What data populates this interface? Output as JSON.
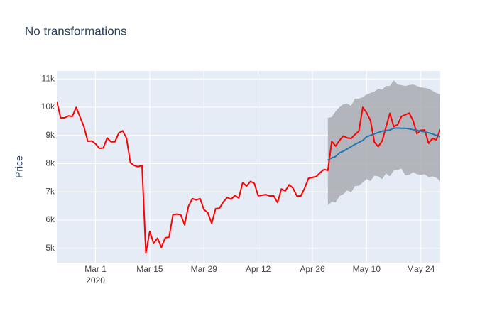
{
  "chart_data": {
    "type": "line",
    "title": "No transformations",
    "y_label": "Price",
    "x": [
      "2020-02-20",
      "2020-02-21",
      "2020-02-22",
      "2020-02-23",
      "2020-02-24",
      "2020-02-25",
      "2020-02-26",
      "2020-02-27",
      "2020-02-28",
      "2020-02-29",
      "2020-03-01",
      "2020-03-02",
      "2020-03-03",
      "2020-03-04",
      "2020-03-05",
      "2020-03-06",
      "2020-03-07",
      "2020-03-08",
      "2020-03-09",
      "2020-03-10",
      "2020-03-11",
      "2020-03-12",
      "2020-03-13",
      "2020-03-14",
      "2020-03-15",
      "2020-03-16",
      "2020-03-17",
      "2020-03-18",
      "2020-03-19",
      "2020-03-20",
      "2020-03-21",
      "2020-03-22",
      "2020-03-23",
      "2020-03-24",
      "2020-03-25",
      "2020-03-26",
      "2020-03-27",
      "2020-03-28",
      "2020-03-29",
      "2020-03-30",
      "2020-03-31",
      "2020-04-01",
      "2020-04-02",
      "2020-04-03",
      "2020-04-04",
      "2020-04-05",
      "2020-04-06",
      "2020-04-07",
      "2020-04-08",
      "2020-04-09",
      "2020-04-10",
      "2020-04-11",
      "2020-04-12",
      "2020-04-13",
      "2020-04-14",
      "2020-04-15",
      "2020-04-16",
      "2020-04-17",
      "2020-04-18",
      "2020-04-19",
      "2020-04-20",
      "2020-04-21",
      "2020-04-22",
      "2020-04-23",
      "2020-04-24",
      "2020-04-25",
      "2020-04-26",
      "2020-04-27",
      "2020-04-28",
      "2020-04-29",
      "2020-04-30",
      "2020-05-01",
      "2020-05-02",
      "2020-05-03",
      "2020-05-04",
      "2020-05-05",
      "2020-05-06",
      "2020-05-07",
      "2020-05-08",
      "2020-05-09",
      "2020-05-10",
      "2020-05-11",
      "2020-05-12",
      "2020-05-13",
      "2020-05-14",
      "2020-05-15",
      "2020-05-16",
      "2020-05-17",
      "2020-05-18",
      "2020-05-19",
      "2020-05-20",
      "2020-05-21",
      "2020-05-22",
      "2020-05-23",
      "2020-05-24",
      "2020-05-25",
      "2020-05-26",
      "2020-05-27",
      "2020-05-28",
      "2020-05-29"
    ],
    "series": [
      {
        "color": "#ff0000",
        "values": [
          10200,
          9620,
          9620,
          9690,
          9670,
          9990,
          9650,
          9310,
          8790,
          8800,
          8700,
          8540,
          8550,
          8910,
          8770,
          8770,
          9080,
          9160,
          8900,
          8030,
          7930,
          7890,
          7940,
          4830,
          5600,
          5170,
          5360,
          5030,
          5370,
          5400,
          6190,
          6210,
          6190,
          5830,
          6490,
          6760,
          6710,
          6760,
          6370,
          6260,
          5880,
          6400,
          6420,
          6640,
          6800,
          6740,
          6870,
          6780,
          7330,
          7200,
          7370,
          7300,
          6860,
          6880,
          6900,
          6850,
          6860,
          6620,
          7100,
          7030,
          7250,
          7130,
          6850,
          6850,
          7130,
          7480,
          7510,
          7540,
          7680,
          7790,
          7760,
          8790,
          8620,
          8820,
          8980,
          8910,
          8890,
          9030,
          9150,
          9990,
          9800,
          9520,
          8760,
          8600,
          8800,
          9290,
          9780,
          9310,
          9380,
          9670,
          9730,
          9790,
          9520,
          9060,
          9180,
          9190,
          8720,
          8890,
          8840,
          9210
        ]
      },
      {
        "color": "#1f77b4",
        "values": [
          null,
          null,
          null,
          null,
          null,
          null,
          null,
          null,
          null,
          null,
          null,
          null,
          null,
          null,
          null,
          null,
          null,
          null,
          null,
          null,
          null,
          null,
          null,
          null,
          null,
          null,
          null,
          null,
          null,
          null,
          null,
          null,
          null,
          null,
          null,
          null,
          null,
          null,
          null,
          null,
          null,
          null,
          null,
          null,
          null,
          null,
          null,
          null,
          null,
          null,
          null,
          null,
          null,
          null,
          null,
          null,
          null,
          null,
          null,
          null,
          null,
          null,
          null,
          null,
          null,
          null,
          null,
          null,
          null,
          null,
          8130,
          8200,
          8250,
          8380,
          8440,
          8520,
          8600,
          8680,
          8750,
          8820,
          8950,
          9000,
          9050,
          9100,
          9150,
          9170,
          9190,
          9250,
          9260,
          9250,
          9250,
          9230,
          9200,
          9180,
          9150,
          9120,
          9090,
          9050,
          9000,
          8950
        ]
      }
    ],
    "band": {
      "color": "#a9adb1",
      "upper": [
        null,
        null,
        null,
        null,
        null,
        null,
        null,
        null,
        null,
        null,
        null,
        null,
        null,
        null,
        null,
        null,
        null,
        null,
        null,
        null,
        null,
        null,
        null,
        null,
        null,
        null,
        null,
        null,
        null,
        null,
        null,
        null,
        null,
        null,
        null,
        null,
        null,
        null,
        null,
        null,
        null,
        null,
        null,
        null,
        null,
        null,
        null,
        null,
        null,
        null,
        null,
        null,
        null,
        null,
        null,
        null,
        null,
        null,
        null,
        null,
        null,
        null,
        null,
        null,
        null,
        null,
        null,
        null,
        null,
        null,
        9620,
        9650,
        9850,
        10000,
        10100,
        10120,
        10050,
        10300,
        10300,
        10350,
        10450,
        10500,
        10550,
        10650,
        10620,
        10750,
        10750,
        10950,
        10800,
        10780,
        10750,
        10780,
        10800,
        10750,
        10700,
        10680,
        10650,
        10580,
        10500,
        10450
      ],
      "lower": [
        null,
        null,
        null,
        null,
        null,
        null,
        null,
        null,
        null,
        null,
        null,
        null,
        null,
        null,
        null,
        null,
        null,
        null,
        null,
        null,
        null,
        null,
        null,
        null,
        null,
        null,
        null,
        null,
        null,
        null,
        null,
        null,
        null,
        null,
        null,
        null,
        null,
        null,
        null,
        null,
        null,
        null,
        null,
        null,
        null,
        null,
        null,
        null,
        null,
        null,
        null,
        null,
        null,
        null,
        null,
        null,
        null,
        null,
        null,
        null,
        null,
        null,
        null,
        null,
        null,
        null,
        null,
        null,
        null,
        null,
        6520,
        6650,
        6620,
        6850,
        6920,
        7050,
        6980,
        7200,
        7220,
        7330,
        7450,
        7380,
        7570,
        7550,
        7450,
        7650,
        7550,
        7750,
        7780,
        7820,
        7580,
        7600,
        7700,
        7620,
        7600,
        7620,
        7520,
        7550,
        7500,
        7380
      ]
    },
    "xlim": [
      "2020-02-20",
      "2020-05-29"
    ],
    "xticks": [
      {
        "value": "2020-03-01",
        "label": "Mar 1"
      },
      {
        "value": "2020-03-15",
        "label": "Mar 15"
      },
      {
        "value": "2020-03-29",
        "label": "Mar 29"
      },
      {
        "value": "2020-04-12",
        "label": "Apr 12"
      },
      {
        "value": "2020-04-26",
        "label": "Apr 26"
      },
      {
        "value": "2020-05-10",
        "label": "May 10"
      },
      {
        "value": "2020-05-24",
        "label": "May 24"
      }
    ],
    "x_year_label": "2020",
    "ylim": [
      4490,
      11280
    ],
    "yticks": [
      {
        "value": 5000,
        "label": "5k"
      },
      {
        "value": 6000,
        "label": "6k"
      },
      {
        "value": 7000,
        "label": "7k"
      },
      {
        "value": 8000,
        "label": "8k"
      },
      {
        "value": 9000,
        "label": "9k"
      },
      {
        "value": 10000,
        "label": "10k"
      },
      {
        "value": 11000,
        "label": "11k"
      }
    ],
    "grid": true
  }
}
